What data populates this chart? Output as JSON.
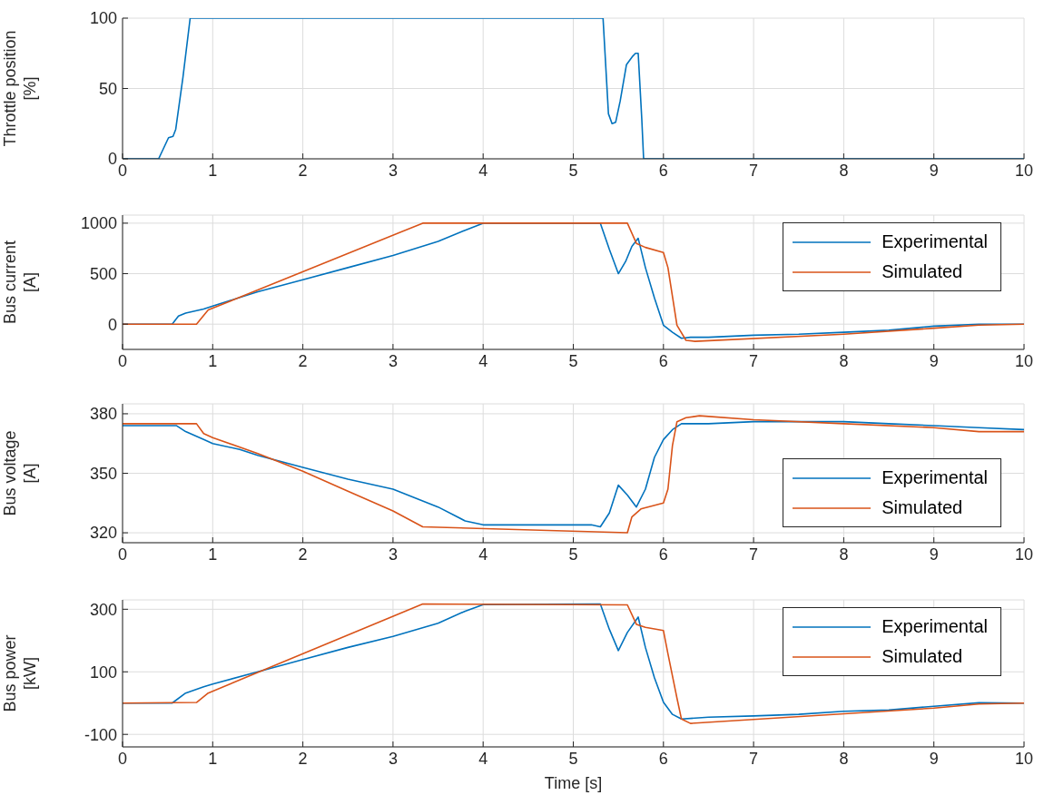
{
  "chart_data": [
    {
      "type": "line",
      "ylabel": "Throttle position\n[%]",
      "xlim": [
        0,
        10
      ],
      "xticks": [
        0,
        1,
        2,
        3,
        4,
        5,
        6,
        7,
        8,
        9,
        10
      ],
      "ylim": [
        0,
        100
      ],
      "yticks": [
        0,
        50,
        100
      ],
      "grid": true,
      "legend": false,
      "series": [
        {
          "color": "#0072bd",
          "x": [
            0,
            0.4,
            0.51,
            0.56,
            0.59,
            0.67,
            0.75,
            5.33,
            5.39,
            5.43,
            5.47,
            5.52,
            5.59,
            5.66,
            5.69,
            5.72,
            5.76,
            5.78,
            10
          ],
          "values": [
            0,
            0,
            15,
            16,
            21,
            58,
            100,
            100,
            32,
            25,
            26,
            41,
            67,
            73,
            75,
            75,
            28,
            0,
            0
          ]
        }
      ]
    },
    {
      "type": "line",
      "ylabel": "Bus current\n[A]",
      "xlim": [
        0,
        10
      ],
      "xticks": [
        0,
        1,
        2,
        3,
        4,
        5,
        6,
        7,
        8,
        9,
        10
      ],
      "ylim": [
        -250,
        1080
      ],
      "yticks": [
        0,
        500,
        1000
      ],
      "grid": true,
      "legend": "top right",
      "series": [
        {
          "name": "Experimental",
          "color": "#0072bd",
          "x": [
            0,
            0.55,
            0.62,
            0.7,
            0.9,
            1.0,
            1.5,
            2.0,
            2.5,
            3.0,
            3.5,
            3.8,
            4.0,
            4.5,
            5.0,
            5.3,
            5.4,
            5.5,
            5.58,
            5.65,
            5.72,
            5.8,
            5.9,
            6.0,
            6.1,
            6.2,
            6.3,
            6.5,
            7.0,
            7.5,
            8.0,
            8.5,
            9.0,
            9.5,
            10
          ],
          "values": [
            0,
            0,
            80,
            110,
            150,
            180,
            320,
            440,
            560,
            680,
            820,
            930,
            1000,
            1000,
            1000,
            1000,
            740,
            500,
            620,
            770,
            850,
            560,
            260,
            -10,
            -80,
            -140,
            -130,
            -130,
            -110,
            -100,
            -80,
            -60,
            -20,
            0,
            0
          ]
        },
        {
          "name": "Simulated",
          "color": "#d95319",
          "x": [
            0,
            0.82,
            0.95,
            3.33,
            5.6,
            5.7,
            5.8,
            6.0,
            6.05,
            6.15,
            6.25,
            6.35,
            8.0,
            9.0,
            9.5,
            10
          ],
          "values": [
            0,
            0,
            140,
            1000,
            1000,
            800,
            760,
            710,
            560,
            -10,
            -160,
            -170,
            -100,
            -40,
            -10,
            0
          ]
        }
      ]
    },
    {
      "type": "line",
      "ylabel": "Bus voltage\n[A]",
      "xlim": [
        0,
        10
      ],
      "xticks": [
        0,
        1,
        2,
        3,
        4,
        5,
        6,
        7,
        8,
        9,
        10
      ],
      "ylim": [
        315,
        385
      ],
      "yticks": [
        320,
        350,
        380
      ],
      "grid": true,
      "legend": "bottom right",
      "series": [
        {
          "name": "Experimental",
          "color": "#0072bd",
          "x": [
            0,
            0.6,
            0.7,
            0.9,
            1.0,
            1.3,
            1.5,
            2.0,
            2.5,
            3.0,
            3.5,
            3.8,
            4.0,
            5.2,
            5.3,
            5.4,
            5.5,
            5.6,
            5.7,
            5.8,
            5.9,
            6.0,
            6.1,
            6.2,
            6.5,
            7.0,
            7.5,
            8.0,
            8.5,
            9.0,
            9.5,
            10
          ],
          "values": [
            374,
            374,
            371,
            367,
            365,
            362,
            359,
            353,
            347,
            342,
            333,
            326,
            324,
            324,
            323,
            330,
            344,
            339,
            333,
            342,
            358,
            367,
            372,
            375,
            375,
            376,
            376,
            376,
            375,
            374,
            373,
            372
          ]
        },
        {
          "name": "Simulated",
          "color": "#d95319",
          "x": [
            0,
            0.82,
            0.9,
            1.0,
            1.5,
            2.0,
            2.5,
            3.0,
            3.33,
            5.6,
            5.65,
            5.75,
            6.0,
            6.05,
            6.1,
            6.15,
            6.25,
            6.4,
            7.0,
            8.0,
            9.0,
            9.5,
            10
          ],
          "values": [
            375,
            375,
            370,
            368,
            360,
            351,
            341,
            331,
            323,
            320,
            328,
            332,
            335,
            342,
            364,
            376,
            378,
            379,
            377,
            375,
            373,
            371,
            371
          ]
        }
      ]
    },
    {
      "type": "line",
      "xlabel": "Time [s]",
      "ylabel": "Bus power\n[kW]",
      "xlim": [
        0,
        10
      ],
      "xticks": [
        0,
        1,
        2,
        3,
        4,
        5,
        6,
        7,
        8,
        9,
        10
      ],
      "ylim": [
        -140,
        330
      ],
      "yticks": [
        -100,
        100,
        300
      ],
      "grid": true,
      "legend": "top right",
      "series": [
        {
          "name": "Experimental",
          "color": "#0072bd",
          "x": [
            0,
            0.55,
            0.7,
            0.9,
            1.0,
            1.5,
            2.0,
            2.5,
            3.0,
            3.5,
            3.8,
            4.0,
            5.3,
            5.4,
            5.5,
            5.6,
            5.72,
            5.8,
            5.9,
            6.0,
            6.1,
            6.2,
            6.5,
            7.0,
            7.5,
            8.0,
            8.5,
            9.0,
            9.5,
            10
          ],
          "values": [
            0,
            0,
            32,
            52,
            61,
            100,
            139,
            178,
            213,
            255,
            294,
            315,
            317,
            236,
            168,
            226,
            275,
            178,
            81,
            3,
            -36,
            -51,
            -45,
            -41,
            -36,
            -26,
            -22,
            -10,
            1,
            0
          ]
        },
        {
          "name": "Simulated",
          "color": "#d95319",
          "x": [
            0,
            0.82,
            0.95,
            3.33,
            5.6,
            5.7,
            5.8,
            6.0,
            6.05,
            6.15,
            6.2,
            6.3,
            9.0,
            9.5,
            10
          ],
          "values": [
            0,
            2,
            32,
            317,
            314,
            252,
            242,
            232,
            158,
            16,
            -51,
            -65,
            -16,
            -3,
            0
          ]
        }
      ]
    }
  ]
}
